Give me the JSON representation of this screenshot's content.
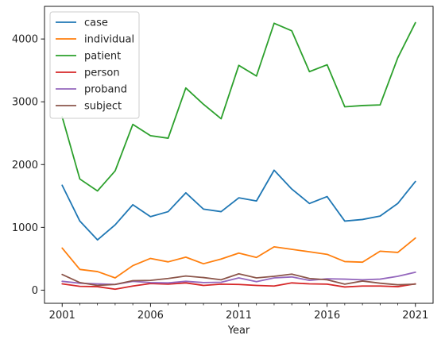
{
  "chart_data": {
    "type": "line",
    "title": "",
    "xlabel": "Year",
    "ylabel": "",
    "x": [
      2001,
      2002,
      2003,
      2004,
      2005,
      2006,
      2007,
      2008,
      2009,
      2010,
      2011,
      2012,
      2013,
      2014,
      2015,
      2016,
      2017,
      2018,
      2019,
      2020,
      2021
    ],
    "xlim": [
      2000.0,
      2022.0
    ],
    "ylim": [
      -210,
      4520
    ],
    "xticks": [
      2001,
      2006,
      2011,
      2016,
      2021
    ],
    "xticks_minor": [
      2001,
      2002,
      2003,
      2004,
      2005,
      2006,
      2007,
      2008,
      2009,
      2010,
      2011,
      2012,
      2013,
      2014,
      2015,
      2016,
      2017,
      2018,
      2019,
      2020,
      2021
    ],
    "yticks": [
      0,
      1000,
      2000,
      3000,
      4000
    ],
    "grid": false,
    "legend_position": "top-left",
    "series": [
      {
        "name": "case",
        "color": "#1f77b4",
        "values": [
          1670,
          1100,
          800,
          1040,
          1360,
          1170,
          1250,
          1550,
          1290,
          1250,
          1470,
          1420,
          1910,
          1610,
          1380,
          1490,
          1100,
          1125,
          1180,
          1380,
          1730
        ]
      },
      {
        "name": "individual",
        "color": "#ff7f0e",
        "values": [
          670,
          330,
          295,
          195,
          390,
          505,
          450,
          525,
          420,
          495,
          590,
          520,
          690,
          650,
          610,
          570,
          455,
          445,
          620,
          600,
          830
        ]
      },
      {
        "name": "patient",
        "color": "#2ca02c",
        "values": [
          2760,
          1770,
          1580,
          1900,
          2640,
          2460,
          2420,
          3220,
          2960,
          2730,
          3580,
          3410,
          4250,
          4130,
          3480,
          3590,
          2920,
          2940,
          2950,
          3700,
          4260
        ]
      },
      {
        "name": "person",
        "color": "#d62728",
        "values": [
          100,
          60,
          55,
          15,
          65,
          105,
          95,
          115,
          75,
          95,
          90,
          75,
          65,
          115,
          100,
          95,
          50,
          65,
          65,
          55,
          100
        ]
      },
      {
        "name": "proband",
        "color": "#9467bd",
        "values": [
          140,
          110,
          100,
          90,
          140,
          120,
          115,
          140,
          120,
          125,
          195,
          135,
          195,
          210,
          155,
          180,
          175,
          165,
          175,
          220,
          285
        ]
      },
      {
        "name": "subject",
        "color": "#8c564b",
        "values": [
          250,
          120,
          75,
          90,
          150,
          155,
          185,
          225,
          200,
          165,
          260,
          195,
          220,
          255,
          185,
          165,
          95,
          145,
          110,
          85,
          95
        ]
      }
    ]
  }
}
